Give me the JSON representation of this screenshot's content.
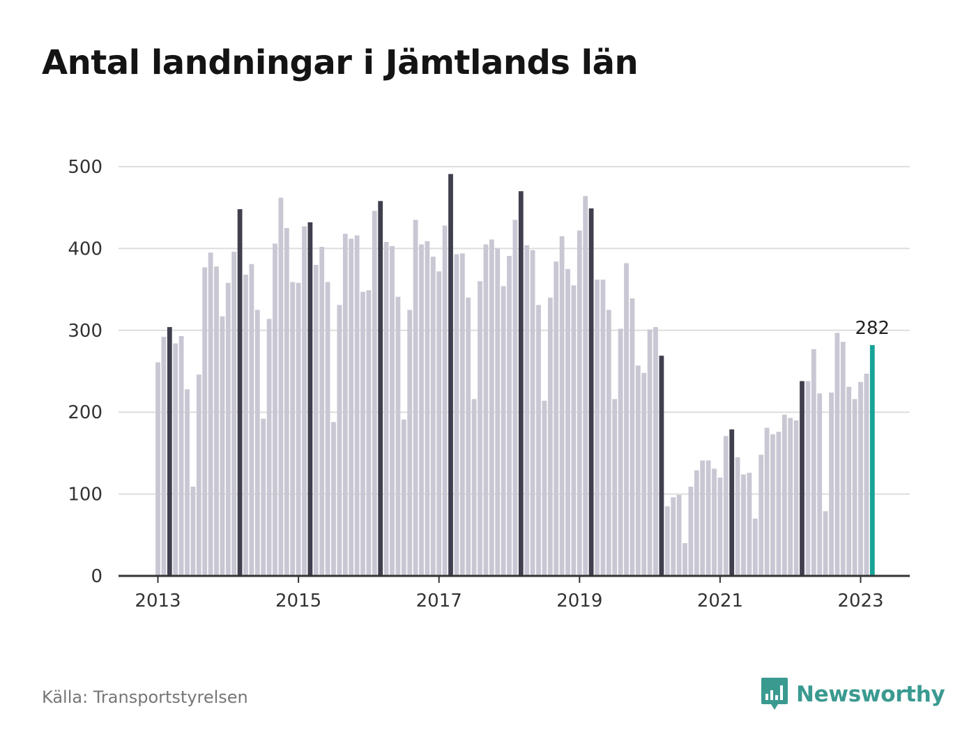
{
  "title": "Antal landningar i Jämtlands län",
  "source": "Källa: Transportstyrelsen",
  "brand": {
    "name": "Newsworthy",
    "icon": "newsworthy-bar-chart-speech-bubble-icon",
    "color": "#3a9a90"
  },
  "colors": {
    "bar": "#c8c7d3",
    "march_bar": "#403f4e",
    "latest_bar": "#17a398",
    "grid": "#dddddd",
    "axis": "#333333"
  },
  "chart_data": {
    "type": "bar",
    "title": "Antal landningar i Jämtlands län",
    "xlabel": "",
    "ylabel": "",
    "ylim": [
      0,
      500
    ],
    "yticks": [
      0,
      100,
      200,
      300,
      400,
      500
    ],
    "xtick_labels": [
      "2013",
      "2015",
      "2017",
      "2019",
      "2021",
      "2023"
    ],
    "grid": true,
    "start_period": "2013-01",
    "end_period": "2023-03",
    "highlight": "March of each year shown in dark color; latest month (2023-03) highlighted in teal",
    "annotation": {
      "period": "2023-03",
      "label": "282"
    },
    "values": [
      261,
      292,
      304,
      284,
      293,
      228,
      109,
      246,
      377,
      395,
      378,
      317,
      358,
      396,
      448,
      368,
      381,
      325,
      192,
      314,
      406,
      462,
      425,
      359,
      358,
      427,
      432,
      380,
      402,
      359,
      188,
      331,
      418,
      412,
      416,
      347,
      349,
      446,
      458,
      408,
      403,
      341,
      191,
      325,
      435,
      405,
      409,
      390,
      372,
      428,
      491,
      393,
      394,
      340,
      216,
      360,
      405,
      411,
      400,
      354,
      391,
      435,
      470,
      404,
      398,
      331,
      214,
      340,
      384,
      415,
      375,
      355,
      422,
      464,
      449,
      362,
      362,
      325,
      216,
      302,
      382,
      339,
      257,
      248,
      301,
      304,
      269,
      85,
      96,
      99,
      40,
      109,
      129,
      141,
      141,
      131,
      120,
      171,
      179,
      145,
      124,
      126,
      70,
      148,
      181,
      173,
      176,
      197,
      193,
      190,
      238,
      238,
      277,
      223,
      79,
      224,
      297,
      286,
      231,
      216,
      237,
      247,
      282
    ]
  }
}
